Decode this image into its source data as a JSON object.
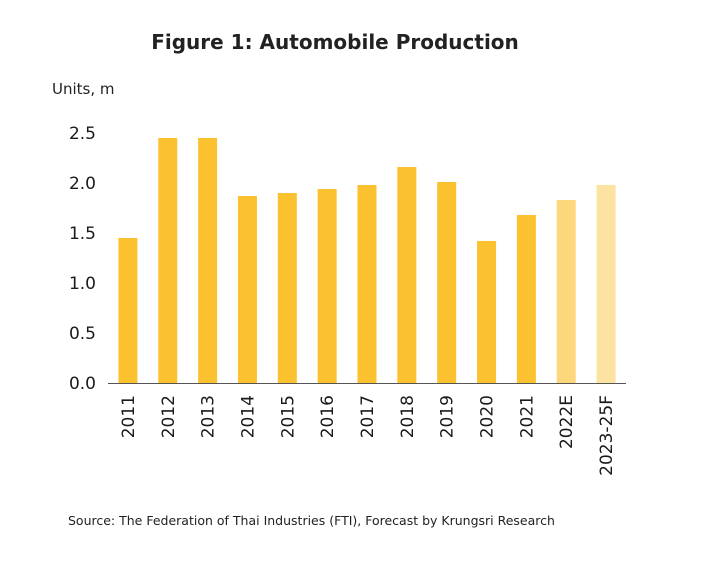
{
  "chart_data": {
    "type": "bar",
    "title": "Figure 1: Automobile Production",
    "ylabel": "Units, m",
    "xlabel": "",
    "categories": [
      "2011",
      "2012",
      "2013",
      "2014",
      "2015",
      "2016",
      "2017",
      "2018",
      "2019",
      "2020",
      "2021",
      "2022E",
      "2023-25F"
    ],
    "values": [
      1.45,
      2.45,
      2.45,
      1.87,
      1.9,
      1.94,
      1.98,
      2.16,
      2.01,
      1.42,
      1.68,
      1.83,
      1.98
    ],
    "bar_status": [
      "actual",
      "actual",
      "actual",
      "actual",
      "actual",
      "actual",
      "actual",
      "actual",
      "actual",
      "actual",
      "actual",
      "estimate",
      "forecast"
    ],
    "yticks": [
      "0.0",
      "0.5",
      "1.0",
      "1.5",
      "2.0",
      "2.5"
    ],
    "ylim": [
      0,
      2.5
    ],
    "grid": false,
    "source": "Source: The Federation of Thai Industries (FTI), Forecast by Krungsri Research",
    "colors": {
      "actual": "#FCC12F",
      "estimate": "#FDD77B",
      "forecast": "#FDE3A2",
      "axis": "#555555"
    }
  }
}
